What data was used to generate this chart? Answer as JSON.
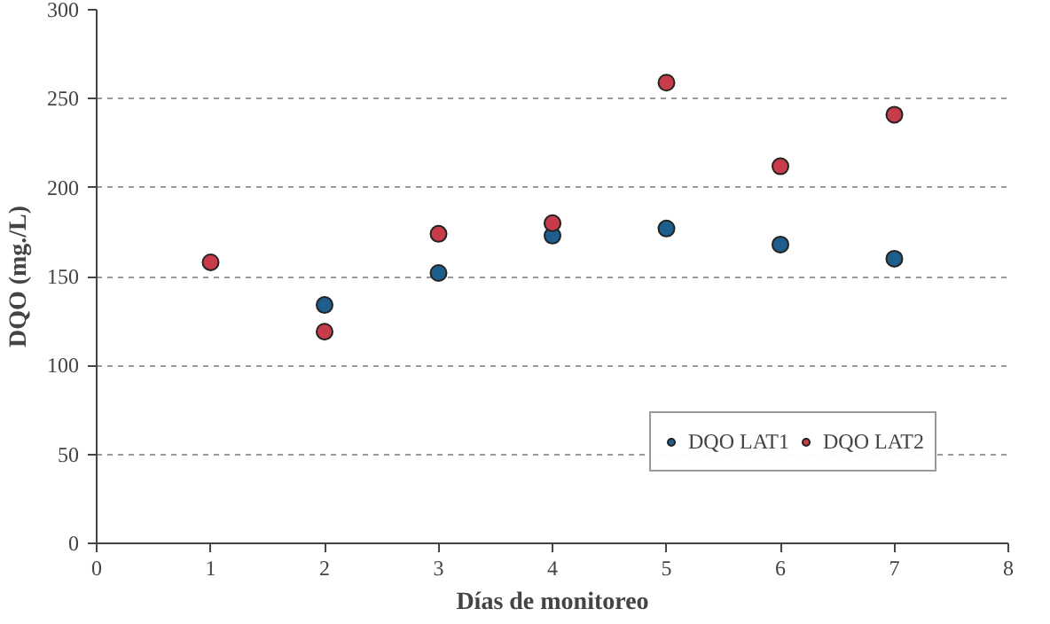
{
  "chart_data": {
    "type": "scatter",
    "xlabel": "Días de monitoreo",
    "ylabel": "DQO (mg./L)",
    "x": [
      1,
      2,
      3,
      4,
      5,
      6,
      7
    ],
    "series": [
      {
        "name": "DQO LAT1",
        "color": "#1f5d8c",
        "values": [
          null,
          134,
          152,
          173,
          177,
          168,
          160
        ]
      },
      {
        "name": "DQO LAT2",
        "color": "#c83c4a",
        "values": [
          158,
          119,
          174,
          180,
          259,
          212,
          241
        ]
      }
    ],
    "xlim": [
      0,
      8
    ],
    "xticks": [
      0,
      1,
      2,
      3,
      4,
      5,
      6,
      7,
      8
    ],
    "ylim": [
      0,
      300
    ],
    "yticks": [
      0,
      50,
      100,
      150,
      200,
      250,
      300
    ],
    "grid": "y",
    "legend": "bottom right",
    "marker": "circle"
  }
}
